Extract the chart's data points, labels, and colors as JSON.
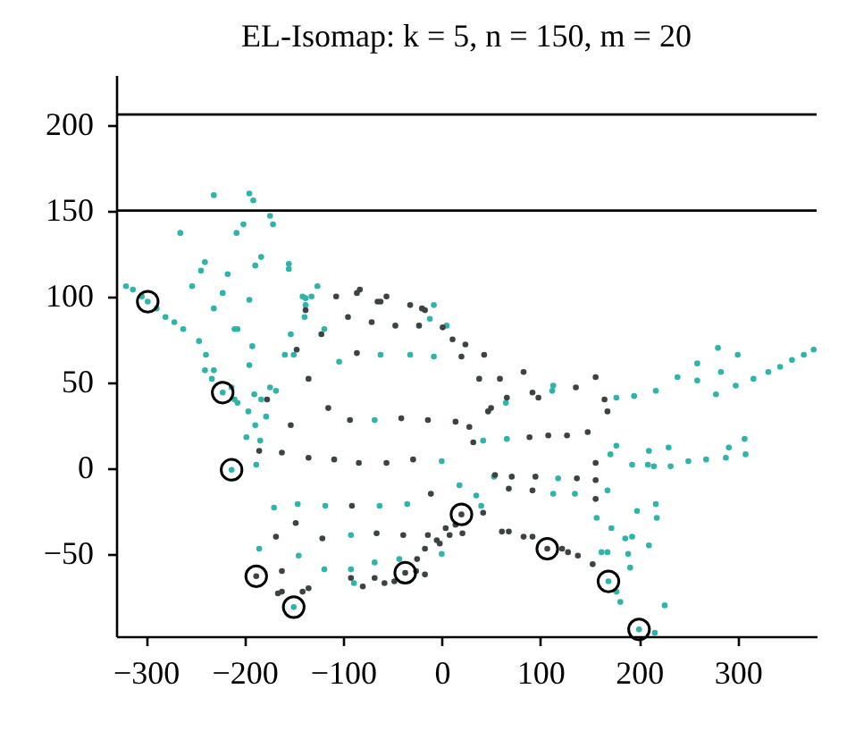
{
  "chart_data": {
    "type": "scatter",
    "title": "EL-Isomap: k = 5, n = 150, m = 20",
    "xlim": [
      -330,
      380
    ],
    "ylim": [
      -98,
      229
    ],
    "xticks": [
      -300,
      -200,
      -100,
      0,
      100,
      200,
      300
    ],
    "yticks": [
      -50,
      0,
      50,
      100,
      150,
      200
    ],
    "grid": false,
    "marker": "circle",
    "ref_lines": [
      {
        "axis": "y",
        "value": 150,
        "color": "#000000"
      },
      {
        "axis": "y",
        "value": 206,
        "color": "#000000"
      }
    ],
    "series": [
      {
        "color": "#2fb4a9",
        "x": [
          -231,
          -195,
          -191,
          -174,
          -171,
          -265,
          -201,
          -208,
          -240,
          -244,
          -217,
          -189,
          -183,
          -155,
          -155,
          -253,
          -231,
          -222,
          -210,
          -195,
          -320,
          -313,
          -304,
          -298,
          -289,
          -280,
          -271,
          -262,
          -246,
          -239,
          -240,
          -231,
          -233,
          -222,
          -213,
          -210,
          -207,
          -196,
          -190,
          -178,
          -168,
          -189,
          -198,
          -184,
          -188,
          -213,
          -207,
          -192,
          -195,
          -174,
          -183,
          -141,
          -138,
          -132,
          -138,
          -139,
          -153,
          -159,
          -150,
          -126,
          -119,
          -104,
          -62,
          -32,
          -12,
          -8,
          5,
          -8,
          113,
          112,
          65,
          177,
          195,
          217,
          239,
          259,
          259,
          280,
          283,
          300,
          278,
          298,
          316,
          331,
          343,
          355,
          367,
          377,
          42,
          66,
          0,
          171,
          177,
          193,
          210,
          230,
          209,
          215,
          232,
          250,
          268,
          288,
          291,
          307,
          308,
          -68,
          53,
          118,
          113,
          135,
          35,
          18,
          40,
          -170,
          -146,
          -118,
          -63,
          -35,
          -185,
          -145,
          -119,
          -92,
          -89,
          -68,
          -43,
          -92,
          157,
          172,
          198,
          217,
          218,
          193,
          186,
          210,
          162,
          168,
          189,
          191,
          177,
          181,
          226,
          216,
          168,
          0,
          169,
          200,
          -150
        ],
        "values": [
          159,
          160,
          156,
          147,
          142,
          137,
          142,
          137,
          120,
          115,
          113,
          118,
          123,
          119,
          116,
          106,
          93,
          102,
          81,
          98,
          106,
          104,
          100,
          97,
          93,
          88,
          85,
          81,
          74,
          66,
          57,
          57,
          52,
          44,
          47,
          40,
          38,
          33,
          43,
          30,
          45,
          25,
          18,
          16,
          2,
          -1,
          81,
          71,
          60,
          47,
          40,
          100,
          99,
          100,
          95,
          88,
          78,
          66,
          66,
          106,
          81,
          62,
          66,
          66,
          87,
          95,
          83,
          65,
          48,
          45,
          38,
          41,
          42,
          45,
          53,
          61,
          51,
          70,
          56,
          66,
          43,
          48,
          52,
          56,
          59,
          63,
          66,
          69,
          16,
          17,
          4,
          8,
          13,
          2,
          10,
          12,
          2,
          1,
          1,
          4,
          5,
          6,
          12,
          17,
          8,
          28,
          -5,
          -6,
          -15,
          -15,
          -16,
          -10,
          -22,
          -23,
          -21,
          -22,
          -22,
          -21,
          -47,
          -51,
          -59,
          -59,
          -67,
          -55,
          -53,
          -39,
          -29,
          -35,
          -25,
          -21,
          -29,
          -40,
          -41,
          -45,
          -49,
          -49,
          -50,
          -58,
          -72,
          -78,
          -80,
          -96,
          -13,
          -50,
          -66,
          -94,
          -81
        ]
      },
      {
        "color": "#3c4343",
        "x": [
          -177,
          -138,
          -122,
          -147,
          -135,
          -107,
          -86,
          -95,
          -71,
          -86,
          -62,
          -56,
          -47,
          -32,
          -20,
          -83,
          -65,
          -23,
          -17,
          11,
          24,
          43,
          20,
          1,
          38,
          59,
          83,
          66,
          92,
          98,
          136,
          156,
          165,
          168,
          50,
          -115,
          -153,
          -93,
          -41,
          -14,
          14,
          28,
          47,
          32,
          89,
          108,
          127,
          148,
          -162,
          -135,
          -109,
          -84,
          -56,
          -29,
          156,
          156,
          -185,
          71,
          54,
          95,
          68,
          92,
          137,
          156,
          -11,
          42,
          -91,
          -148,
          -168,
          -121,
          -66,
          -39,
          -14,
          14,
          8,
          -2,
          61,
          68,
          83,
          92,
          122,
          128,
          138,
          153,
          4,
          -5,
          -17,
          -25,
          21,
          -162,
          -166,
          -162,
          -135,
          -141,
          -92,
          -80,
          -68,
          -58,
          -48,
          -26,
          -17,
          -188,
          -37,
          20,
          107
        ],
        "values": [
          40,
          92,
          78,
          69,
          52,
          100,
          102,
          88,
          85,
          67,
          97,
          100,
          83,
          95,
          93,
          104,
          97,
          83,
          92,
          75,
          72,
          66,
          65,
          82,
          52,
          52,
          56,
          41,
          44,
          41,
          47,
          53,
          40,
          33,
          35,
          35,
          25,
          28,
          29,
          28,
          27,
          24,
          33,
          15,
          18,
          19,
          19,
          21,
          9,
          6,
          5,
          3,
          3,
          5,
          3,
          -7,
          10,
          -5,
          -4,
          -5,
          -12,
          -13,
          -6,
          -18,
          -15,
          -26,
          -22,
          -32,
          -40,
          -41,
          -38,
          -39,
          -39,
          -33,
          -39,
          -44,
          -37,
          -37,
          -40,
          -40,
          -47,
          -49,
          -51,
          -56,
          -35,
          -42,
          -47,
          -53,
          -38,
          -60,
          -73,
          -72,
          -70,
          -72,
          -64,
          -69,
          -64,
          -67,
          -66,
          -60,
          -62,
          -63,
          -61,
          -27,
          -47
        ]
      },
      {
        "color": "#000000",
        "x": [
          -298,
          -222,
          -213,
          -188,
          -150,
          -37,
          20,
          107,
          169,
          200
        ],
        "values": [
          97,
          44,
          -1,
          -63,
          -81,
          -61,
          -27,
          -47,
          -66,
          -94
        ]
      }
    ]
  }
}
